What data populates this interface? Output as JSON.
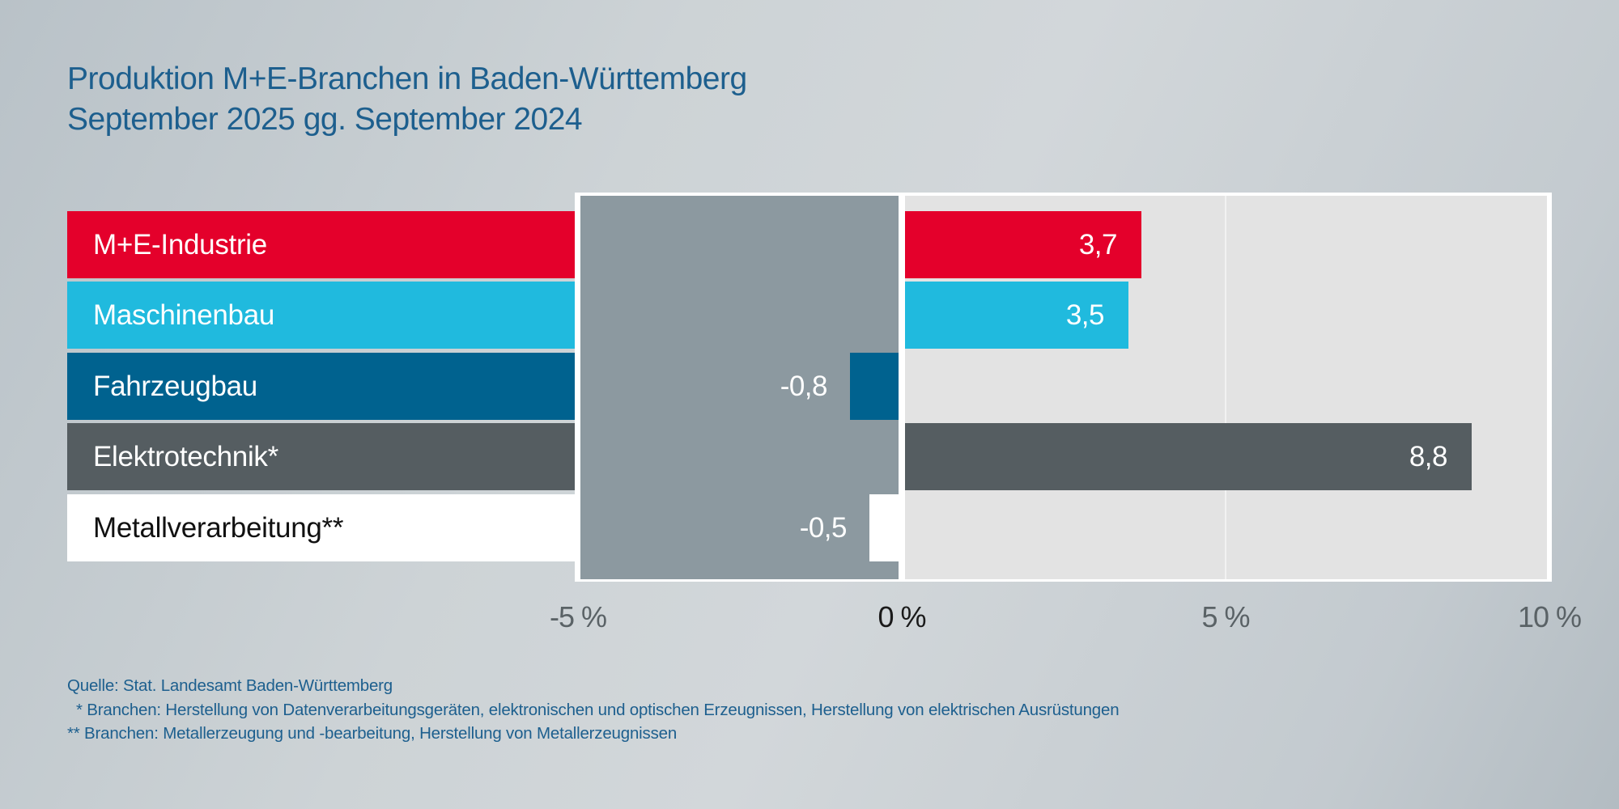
{
  "title_line1": "Produktion M+E-Branchen in Baden-Württemberg",
  "title_line2": "September 2025 gg. September 2024",
  "chart_data": {
    "type": "bar",
    "orientation": "horizontal",
    "title": "Produktion M+E-Branchen in Baden-Württemberg September 2025 gg. September 2024",
    "categories": [
      "M+E-Industrie",
      "Maschinenbau",
      "Fahrzeugbau",
      "Elektrotechnik*",
      "Metallverarbeitung**"
    ],
    "values": [
      3.7,
      3.5,
      -0.8,
      8.8,
      -0.5
    ],
    "value_labels": [
      "3,7",
      "3,5",
      "-0,8",
      "8,8",
      "-0,5"
    ],
    "colors": [
      "#e4002b",
      "#20bade",
      "#00628f",
      "#555d61",
      "#ffffff"
    ],
    "label_text_colors": [
      "#ffffff",
      "#ffffff",
      "#ffffff",
      "#ffffff",
      "#111111"
    ],
    "negative_area_color": "#8c99a0",
    "xlim": [
      -5,
      10
    ],
    "ticks": [
      -5,
      0,
      5,
      10
    ],
    "tick_labels": [
      "-5 %",
      "0 %",
      "5 %",
      "10 %"
    ],
    "grid": true,
    "xlabel": "",
    "ylabel": ""
  },
  "footnotes": {
    "source": "Quelle: Stat. Landesamt Baden-Württemberg",
    "note1": "  * Branchen: Herstellung von Datenverarbeitungsgeräten, elektronischen und optischen Erzeugnissen, Herstellung von elektrischen Ausrüstungen",
    "note2": "** Branchen: Metallerzeugung und -bearbeitung, Herstellung von Metallerzeugnissen"
  }
}
